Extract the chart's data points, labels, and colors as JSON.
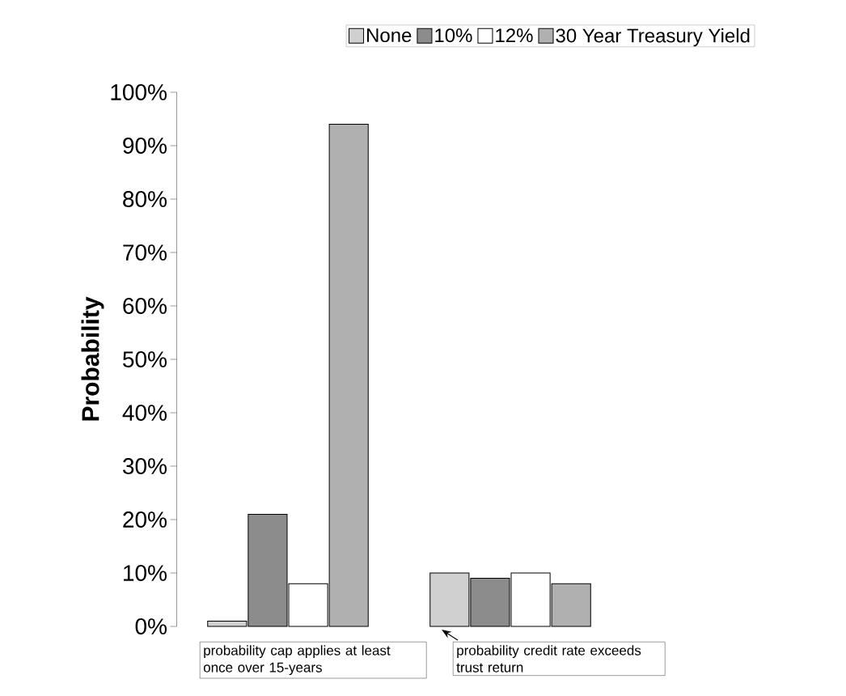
{
  "chart_data": {
    "type": "bar",
    "ylabel": "Probability",
    "legend": "top",
    "categories": [
      "probability cap applies at least once over 15-years",
      "probability credit rate exceeds trust return"
    ],
    "series": [
      {
        "name": "None",
        "color": "#d0d0d0",
        "values": [
          1,
          10
        ]
      },
      {
        "name": "10%",
        "color": "#8c8c8c",
        "values": [
          21,
          9
        ]
      },
      {
        "name": "12%",
        "color": "#ffffff",
        "values": [
          8,
          10
        ]
      },
      {
        "name": "30 Year Treasury Yield",
        "color": "#b0b0b0",
        "values": [
          94,
          8
        ]
      }
    ],
    "ylim": [
      0,
      100
    ],
    "yticks": [
      {
        "value": 0,
        "label": "0%"
      },
      {
        "value": 10,
        "label": "10%"
      },
      {
        "value": 20,
        "label": "20%"
      },
      {
        "value": 30,
        "label": "30%"
      },
      {
        "value": 40,
        "label": "40%"
      },
      {
        "value": 50,
        "label": "50%"
      },
      {
        "value": 60,
        "label": "60%"
      },
      {
        "value": 70,
        "label": "70%"
      },
      {
        "value": 80,
        "label": "80%"
      },
      {
        "value": 90,
        "label": "90%"
      },
      {
        "value": 100,
        "label": "100%"
      }
    ]
  }
}
